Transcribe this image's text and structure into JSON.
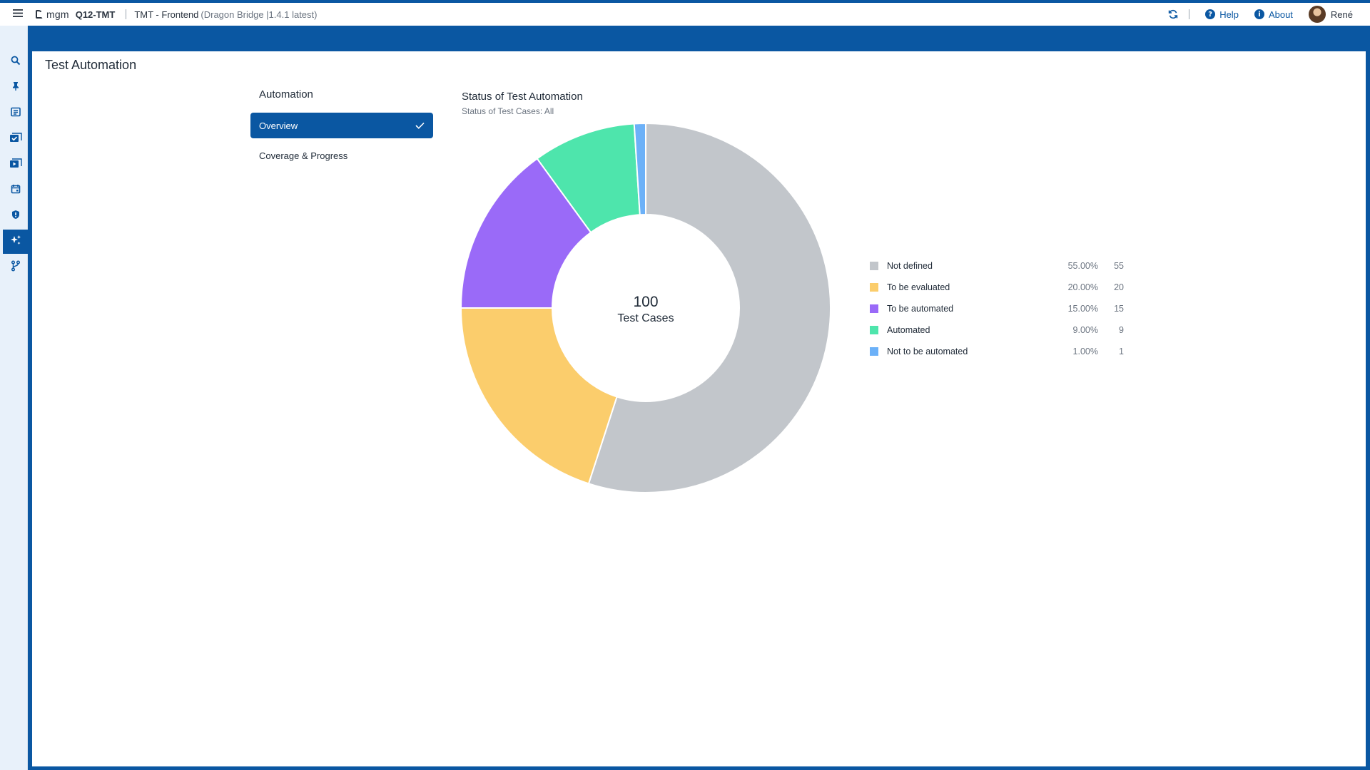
{
  "header": {
    "logo_text": "mgm",
    "product": "Q12-TMT",
    "project_name": "TMT - Frontend",
    "project_version": "(Dragon Bridge |1.4.1 latest)",
    "help_label": "Help",
    "about_label": "About",
    "user_name": "René"
  },
  "icons": {
    "menu": "hamburger-menu-icon",
    "sync": "sync-icon",
    "help": "help-icon",
    "about": "info-icon"
  },
  "sidebar": {
    "items": [
      {
        "name": "search",
        "icon": "search-icon",
        "active": false
      },
      {
        "name": "pinned",
        "icon": "pin-icon",
        "active": false
      },
      {
        "name": "test-specification",
        "icon": "grid-icon",
        "active": false
      },
      {
        "name": "test-cases",
        "icon": "checklist-icon",
        "active": false
      },
      {
        "name": "test-execution",
        "icon": "play-icon",
        "active": false
      },
      {
        "name": "planning",
        "icon": "calendar-icon",
        "active": false
      },
      {
        "name": "quality",
        "icon": "shield-icon",
        "active": false
      },
      {
        "name": "automation",
        "icon": "sparkle-icon",
        "active": true
      },
      {
        "name": "branches",
        "icon": "branch-icon",
        "active": false
      }
    ]
  },
  "page": {
    "title": "Test Automation"
  },
  "automation_nav": {
    "header": "Automation",
    "items": [
      {
        "label": "Overview",
        "active": true
      },
      {
        "label": "Coverage & Progress",
        "active": false
      }
    ]
  },
  "colors": {
    "primary": "#0a57a2",
    "not_defined": "#c2c6cb",
    "to_be_evaluated": "#fbcd6c",
    "to_be_automated": "#9a6af8",
    "automated": "#4ee5ac",
    "not_to_be_automated": "#6cb1f8"
  },
  "chart_data": {
    "type": "pie",
    "title": "Status of Test Automation",
    "subtitle": "Status of Test Cases: All",
    "center_value": "100",
    "center_label": "Test Cases",
    "legend_position": "right",
    "slices": [
      {
        "label": "Not defined",
        "value": 55,
        "percent": "55.00%",
        "color": "#c2c6cb"
      },
      {
        "label": "To be evaluated",
        "value": 20,
        "percent": "20.00%",
        "color": "#fbcd6c"
      },
      {
        "label": "To be automated",
        "value": 15,
        "percent": "15.00%",
        "color": "#9a6af8"
      },
      {
        "label": "Automated",
        "value": 9,
        "percent": "9.00%",
        "color": "#4ee5ac"
      },
      {
        "label": "Not to be automated",
        "value": 1,
        "percent": "1.00%",
        "color": "#6cb1f8"
      }
    ]
  }
}
